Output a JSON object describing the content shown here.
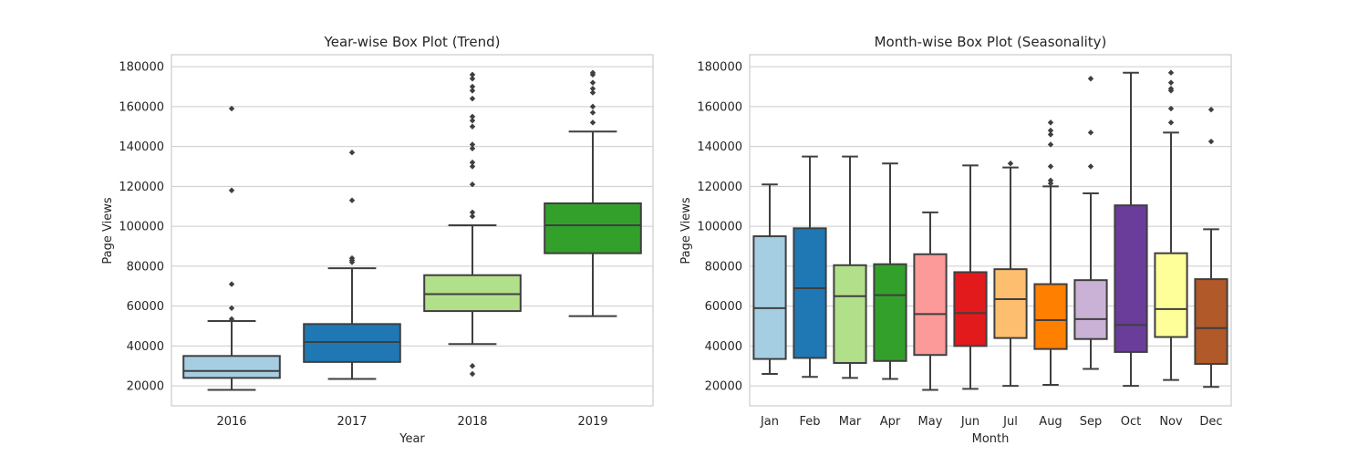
{
  "chart_data": [
    {
      "type": "box",
      "title": "Year-wise Box Plot (Trend)",
      "xlabel": "Year",
      "ylabel": "Page Views",
      "ylim": [
        10000,
        186000
      ],
      "yticks": [
        20000,
        40000,
        60000,
        80000,
        100000,
        120000,
        140000,
        160000,
        180000
      ],
      "grid": true,
      "categories": [
        "2016",
        "2017",
        "2018",
        "2019"
      ],
      "colors": [
        "#a6cee3",
        "#1f78b4",
        "#b2df8a",
        "#33a02c"
      ],
      "boxes": [
        {
          "label": "2016",
          "whisker_low": 18000,
          "q1": 24000,
          "median": 27500,
          "q3": 35000,
          "whisker_high": 52500,
          "fliers": [
            159000,
            118000,
            71000,
            59000,
            53500
          ]
        },
        {
          "label": "2017",
          "whisker_low": 23500,
          "q1": 32000,
          "median": 42000,
          "q3": 51000,
          "whisker_high": 79000,
          "fliers": [
            137000,
            113000,
            84000,
            83000,
            82000
          ]
        },
        {
          "label": "2018",
          "whisker_low": 41000,
          "q1": 57500,
          "median": 66000,
          "q3": 75500,
          "whisker_high": 100500,
          "fliers": [
            176000,
            174000,
            170000,
            168000,
            164000,
            155000,
            153000,
            150000,
            141000,
            139000,
            132000,
            130000,
            121000,
            107000,
            105000,
            30000,
            26000
          ]
        },
        {
          "label": "2019",
          "whisker_low": 55000,
          "q1": 86500,
          "median": 100500,
          "q3": 111500,
          "whisker_high": 147500,
          "fliers": [
            177000,
            176000,
            172000,
            169000,
            167000,
            160000,
            157000,
            152000
          ]
        }
      ]
    },
    {
      "type": "box",
      "title": "Month-wise Box Plot (Seasonality)",
      "xlabel": "Month",
      "ylabel": "Page Views",
      "ylim": [
        10000,
        186000
      ],
      "yticks": [
        20000,
        40000,
        60000,
        80000,
        100000,
        120000,
        140000,
        160000,
        180000
      ],
      "grid": true,
      "categories": [
        "Jan",
        "Feb",
        "Mar",
        "Apr",
        "May",
        "Jun",
        "Jul",
        "Aug",
        "Sep",
        "Oct",
        "Nov",
        "Dec"
      ],
      "colors": [
        "#a6cee3",
        "#1f78b4",
        "#b2df8a",
        "#33a02c",
        "#fb9a99",
        "#e31a1c",
        "#fdbf6f",
        "#ff7f00",
        "#cab2d6",
        "#6a3d9a",
        "#ffff99",
        "#b15928"
      ],
      "boxes": [
        {
          "label": "Jan",
          "whisker_low": 26000,
          "q1": 33500,
          "median": 59000,
          "q3": 95000,
          "whisker_high": 121000,
          "fliers": []
        },
        {
          "label": "Feb",
          "whisker_low": 24500,
          "q1": 34000,
          "median": 69000,
          "q3": 99000,
          "whisker_high": 135000,
          "fliers": []
        },
        {
          "label": "Mar",
          "whisker_low": 24000,
          "q1": 31500,
          "median": 65000,
          "q3": 80500,
          "whisker_high": 135000,
          "fliers": []
        },
        {
          "label": "Apr",
          "whisker_low": 23500,
          "q1": 32500,
          "median": 65500,
          "q3": 81000,
          "whisker_high": 131500,
          "fliers": []
        },
        {
          "label": "May",
          "whisker_low": 18000,
          "q1": 35500,
          "median": 56000,
          "q3": 86000,
          "whisker_high": 107000,
          "fliers": []
        },
        {
          "label": "Jun",
          "whisker_low": 18500,
          "q1": 40000,
          "median": 56500,
          "q3": 77000,
          "whisker_high": 130500,
          "fliers": []
        },
        {
          "label": "Jul",
          "whisker_low": 20000,
          "q1": 44000,
          "median": 63500,
          "q3": 78500,
          "whisker_high": 129500,
          "fliers": [
            131500
          ]
        },
        {
          "label": "Aug",
          "whisker_low": 20500,
          "q1": 38500,
          "median": 53000,
          "q3": 71000,
          "whisker_high": 120000,
          "fliers": [
            152000,
            148000,
            146000,
            141000,
            130000,
            123000,
            121500
          ]
        },
        {
          "label": "Sep",
          "whisker_low": 28500,
          "q1": 43500,
          "median": 53500,
          "q3": 73000,
          "whisker_high": 116500,
          "fliers": [
            174000,
            147000,
            130000
          ]
        },
        {
          "label": "Oct",
          "whisker_low": 20000,
          "q1": 37000,
          "median": 50500,
          "q3": 110500,
          "whisker_high": 177000,
          "fliers": []
        },
        {
          "label": "Nov",
          "whisker_low": 23000,
          "q1": 44500,
          "median": 58500,
          "q3": 86500,
          "whisker_high": 147000,
          "fliers": [
            177000,
            172000,
            169000,
            168000,
            159000,
            152000
          ]
        },
        {
          "label": "Dec",
          "whisker_low": 19500,
          "q1": 31000,
          "median": 49000,
          "q3": 73500,
          "whisker_high": 98500,
          "fliers": [
            158500,
            142500
          ]
        }
      ]
    }
  ]
}
